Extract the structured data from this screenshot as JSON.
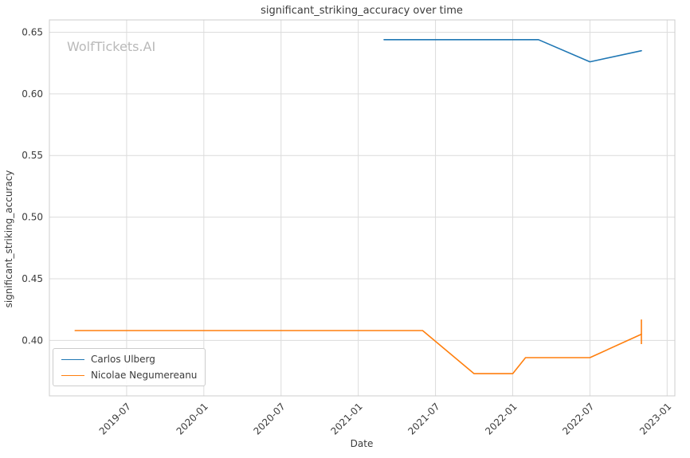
{
  "chart_data": {
    "type": "line",
    "title": "significant_striking_accuracy over time",
    "xlabel": "Date",
    "ylabel": "significant_striking_accuracy",
    "watermark": "WolfTickets.AI",
    "grid": true,
    "legend_position": "lower left",
    "xlim": [
      2019.0,
      2023.05
    ],
    "ylim": [
      0.355,
      0.66
    ],
    "xticks": [
      "2019-07",
      "2020-01",
      "2020-07",
      "2021-01",
      "2021-07",
      "2022-01",
      "2022-07",
      "2023-01"
    ],
    "yticks": [
      0.4,
      0.45,
      0.5,
      0.55,
      0.6,
      0.65
    ],
    "colors": {
      "grid": "#dcdcdc",
      "frame": "#cccccc",
      "text": "#3b3b3b",
      "watermark": "#b9b9b9",
      "background": "#ffffff"
    },
    "series": [
      {
        "name": "Carlos Ulberg",
        "color": "#1f77b4",
        "points": [
          [
            "2021-03",
            0.644
          ],
          [
            "2022-03",
            0.644
          ],
          [
            "2022-07",
            0.626
          ],
          [
            "2022-11",
            0.635
          ]
        ]
      },
      {
        "name": "Nicolae Negumereanu",
        "color": "#ff7f0e",
        "points": [
          [
            "2019-03",
            0.408
          ],
          [
            "2021-06",
            0.408
          ],
          [
            "2021-10",
            0.373
          ],
          [
            "2022-01",
            0.373
          ],
          [
            "2022-02",
            0.386
          ],
          [
            "2022-07",
            0.386
          ],
          [
            "2022-11",
            0.405
          ]
        ],
        "end_tick": {
          "x": "2022-11",
          "from": 0.397,
          "to": 0.417
        }
      }
    ]
  }
}
